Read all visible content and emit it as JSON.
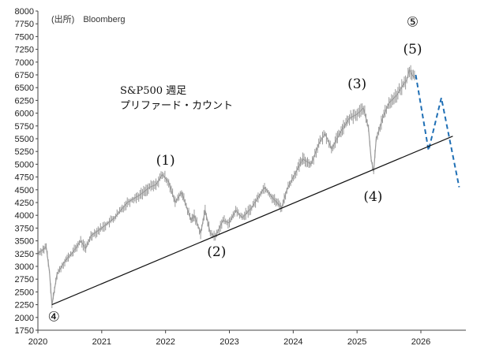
{
  "source_note": "(出所)　Bloomberg",
  "chart_title_line1": "S&P500 週足",
  "chart_title_line2": "プリファード・カウント",
  "colors": {
    "price": "#9a9a9a",
    "trendline": "#111111",
    "projection": "#1f6fb5",
    "axis": "#444444"
  },
  "chart_data": {
    "type": "line",
    "title": "S&P500 週足 プリファード・カウント",
    "xlabel": "",
    "ylabel": "",
    "xlim": [
      2020.0,
      2026.72
    ],
    "ylim": [
      1750,
      8000
    ],
    "x_tick_labels": [
      "2020",
      "2021",
      "2022",
      "2023",
      "2024",
      "2025",
      "2026"
    ],
    "y_tick_labels": [
      "1750",
      "2000",
      "2250",
      "2500",
      "2750",
      "3000",
      "3250",
      "3500",
      "3750",
      "4000",
      "4250",
      "4500",
      "4750",
      "5000",
      "5250",
      "5500",
      "5750",
      "6000",
      "6250",
      "6500",
      "6750",
      "7000",
      "7250",
      "7500",
      "7750",
      "8000"
    ],
    "grid": false,
    "series": [
      {
        "style": "price",
        "x": [
          2020.0,
          2020.08,
          2020.13,
          2020.18,
          2020.22,
          2020.3,
          2020.42,
          2020.55,
          2020.67,
          2020.75,
          2020.83,
          2021.0,
          2021.2,
          2021.4,
          2021.6,
          2021.75,
          2021.85,
          2021.95,
          2022.05,
          2022.15,
          2022.25,
          2022.4,
          2022.45,
          2022.55,
          2022.62,
          2022.7,
          2022.78,
          2022.9,
          2023.0,
          2023.1,
          2023.2,
          2023.35,
          2023.45,
          2023.55,
          2023.67,
          2023.82,
          2023.9,
          2024.0,
          2024.15,
          2024.28,
          2024.4,
          2024.5,
          2024.6,
          2024.75,
          2024.88,
          2025.0,
          2025.1,
          2025.18,
          2025.22,
          2025.26,
          2025.3,
          2025.4,
          2025.5,
          2025.62,
          2025.72,
          2025.78,
          2025.82,
          2025.86,
          2025.92
        ],
        "values": [
          3250,
          3330,
          3380,
          2900,
          2240,
          2850,
          3100,
          3280,
          3500,
          3350,
          3600,
          3750,
          3950,
          4250,
          4400,
          4550,
          4600,
          4800,
          4650,
          4250,
          4450,
          3900,
          4000,
          3650,
          4100,
          3650,
          3580,
          3900,
          3850,
          4100,
          3950,
          4150,
          4350,
          4550,
          4350,
          4150,
          4500,
          4750,
          5100,
          5000,
          5400,
          5600,
          5300,
          5650,
          5900,
          5980,
          6100,
          5700,
          5100,
          4850,
          5500,
          5900,
          6200,
          6350,
          6550,
          6650,
          6850,
          6750,
          6680
        ]
      },
      {
        "style": "projection",
        "x": [
          2025.92,
          2026.12,
          2026.32,
          2026.6
        ],
        "values": [
          6750,
          5270,
          6300,
          4550
        ]
      },
      {
        "style": "trendline",
        "x": [
          2020.22,
          2026.5
        ],
        "values": [
          2250,
          5550
        ]
      }
    ],
    "annotations": [
      {
        "label": "④",
        "x": 2020.25,
        "y": 1930
      },
      {
        "label": "(1)",
        "x": 2022.0,
        "y": 4990
      },
      {
        "label": "(2)",
        "x": 2022.8,
        "y": 3200
      },
      {
        "label": "(3)",
        "x": 2025.0,
        "y": 6490
      },
      {
        "label": "(4)",
        "x": 2025.25,
        "y": 4280
      },
      {
        "label": "(5)",
        "x": 2025.87,
        "y": 7170
      },
      {
        "label": "⑤",
        "x": 2025.87,
        "y": 7700
      }
    ]
  }
}
